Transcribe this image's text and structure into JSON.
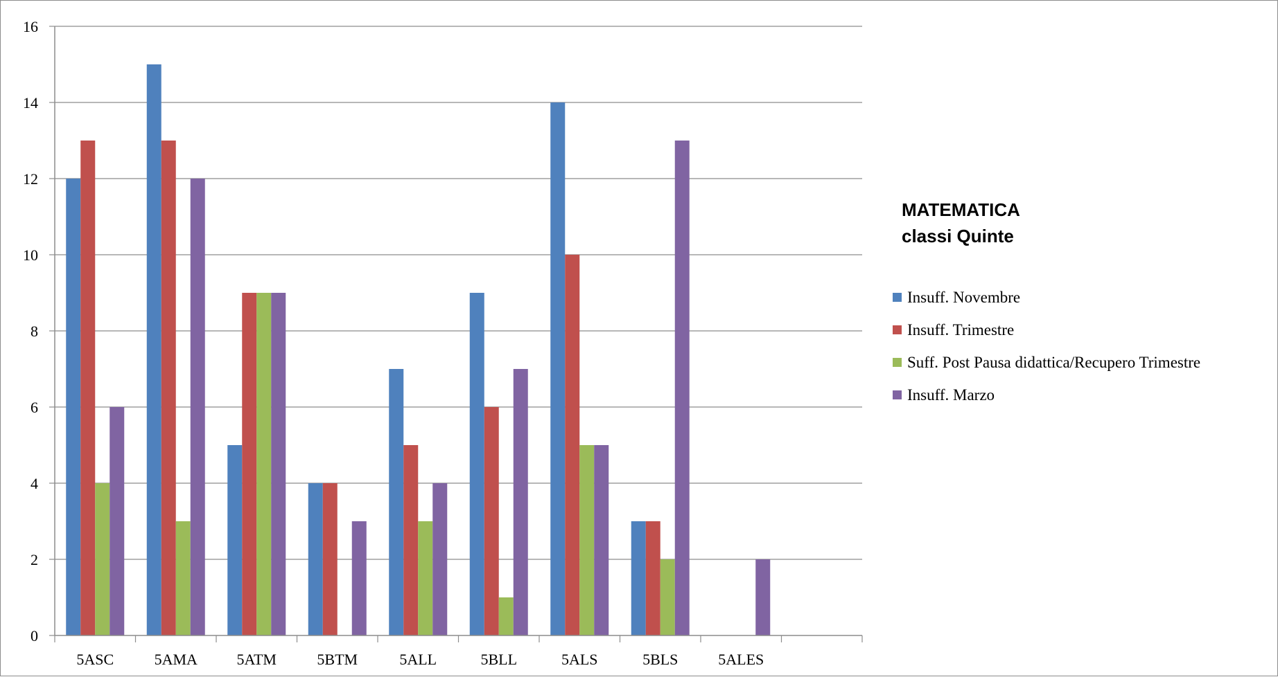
{
  "chart_data": {
    "type": "bar",
    "title": "MATEMATICA",
    "subtitle": "classi Quinte",
    "categories": [
      "5ASC",
      "5AMA",
      "5ATM",
      "5BTM",
      "5ALL",
      "5BLL",
      "5ALS",
      "5BLS",
      "5ALES",
      ""
    ],
    "series": [
      {
        "name": "Insuff. Novembre",
        "color": "#4F81BD",
        "values": [
          12,
          15,
          5,
          4,
          7,
          9,
          14,
          3,
          null,
          null
        ]
      },
      {
        "name": "Insuff. Trimestre",
        "color": "#C0504D",
        "values": [
          13,
          13,
          9,
          4,
          5,
          6,
          10,
          3,
          null,
          null
        ]
      },
      {
        "name": "Suff. Post Pausa didattica/Recupero Trimestre",
        "color": "#9BBB59",
        "values": [
          4,
          3,
          9,
          null,
          3,
          1,
          5,
          2,
          null,
          null
        ]
      },
      {
        "name": "Insuff. Marzo",
        "color": "#8064A2",
        "values": [
          6,
          12,
          9,
          3,
          4,
          7,
          5,
          13,
          2,
          null
        ]
      }
    ],
    "ylim": [
      0,
      16
    ],
    "yticks": [
      0,
      2,
      4,
      6,
      8,
      10,
      12,
      14,
      16
    ],
    "grid": true,
    "legend_position": "right",
    "xlabel": "",
    "ylabel": ""
  }
}
